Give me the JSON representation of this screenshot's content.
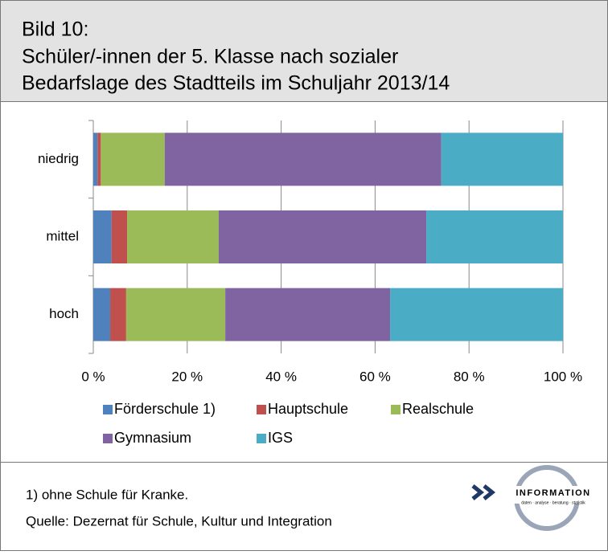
{
  "chart_data": {
    "type": "stacked-barh",
    "title": [
      "Bild 10:",
      "Schüler/-innen der 5. Klasse nach sozialer",
      "Bedarfslage des Stadtteils im Schuljahr 2013/14"
    ],
    "categories": [
      "niedrig",
      "mittel",
      "hoch"
    ],
    "series": [
      {
        "name": "Förderschule 1)",
        "color": "#4f81bd",
        "values": [
          0.9,
          3.9,
          3.6
        ]
      },
      {
        "name": "Hauptschule",
        "color": "#c0504d",
        "values": [
          0.7,
          3.3,
          3.4
        ]
      },
      {
        "name": "Realschule",
        "color": "#9bbb59",
        "values": [
          13.6,
          19.5,
          21.1
        ]
      },
      {
        "name": "Gymnasium",
        "color": "#8064a2",
        "values": [
          58.9,
          44.2,
          35.1
        ]
      },
      {
        "name": "IGS",
        "color": "#4bacc6",
        "values": [
          25.9,
          29.1,
          36.8
        ]
      }
    ],
    "xlim": [
      0,
      100
    ],
    "xticks": [
      {
        "value": 0,
        "label": "0 %"
      },
      {
        "value": 20,
        "label": "20 %"
      },
      {
        "value": 40,
        "label": "40 %"
      },
      {
        "value": 60,
        "label": "60 %"
      },
      {
        "value": 80,
        "label": "80 %"
      },
      {
        "value": 100,
        "label": "100 %"
      }
    ],
    "grid": true,
    "legend": "bottom"
  },
  "footer": {
    "note": "1) ohne Schule für Kranke.",
    "source": "Quelle: Dezernat für Schule, Kultur und Integration",
    "logo": {
      "name": "INFORMATION",
      "tagline": "daten · analyse · beratung · statistik"
    }
  }
}
